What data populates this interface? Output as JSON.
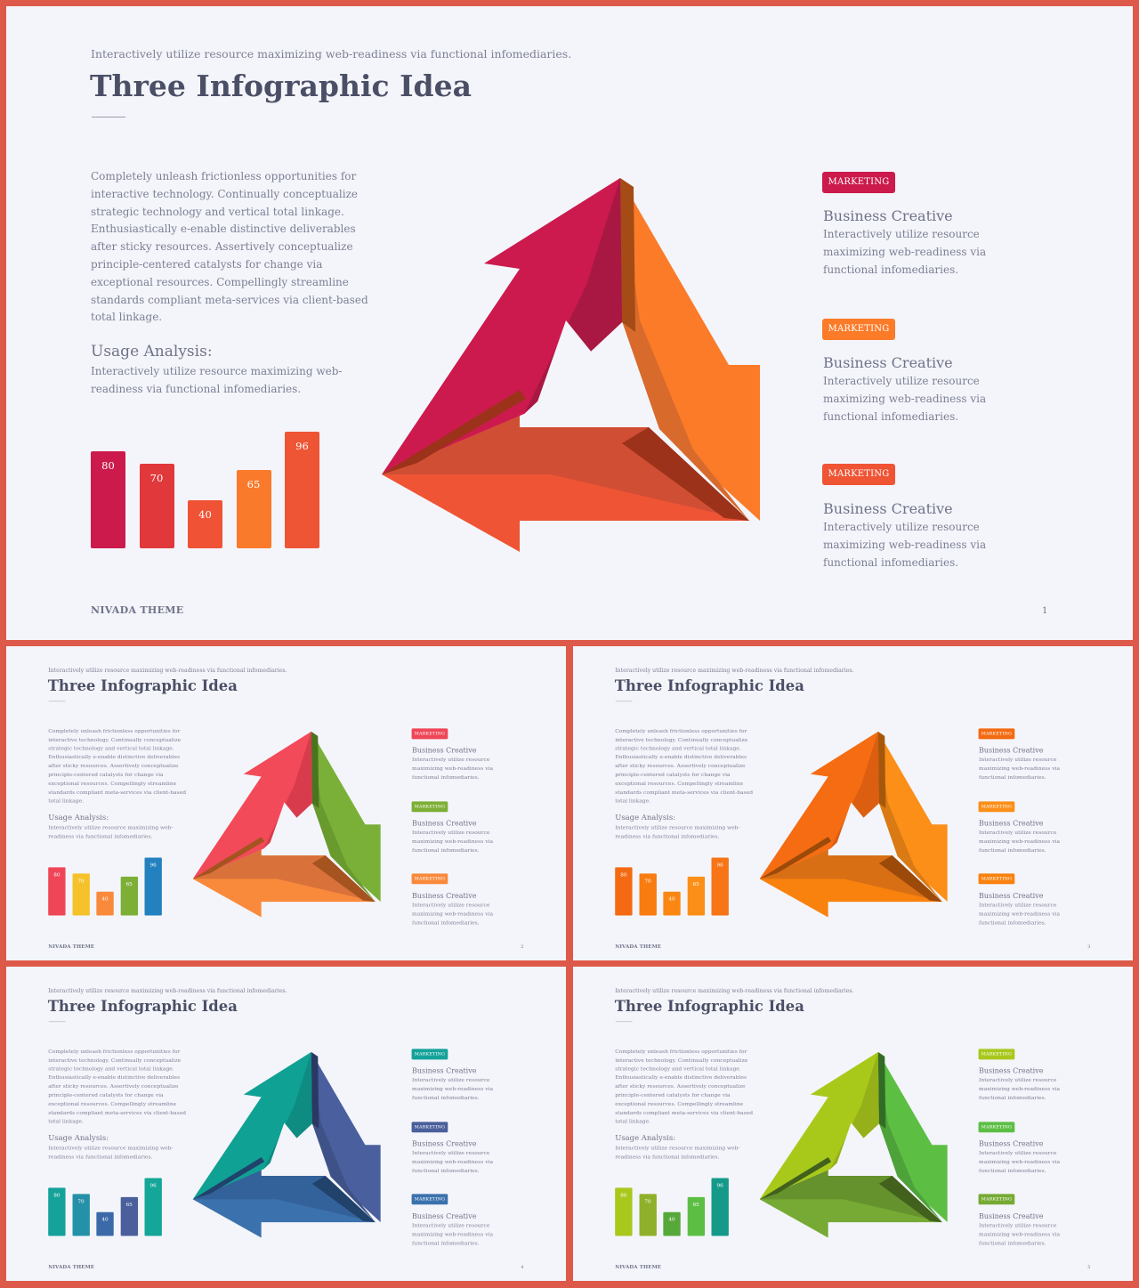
{
  "slides": [
    {
      "subtitle": "Interactively utilize resource maximizing web-readiness via functional infomediaries.",
      "title": "Three Infographic Idea",
      "body": "Completely unleash frictionless opportunities for interactive technology. Continually conceptualize strategic technology and vertical total linkage. Enthusiastically e-enable distinctive deliverables after sticky resources. Assertively conceptualize principle-centered catalysts for change via exceptional resources. Compellingly streamline standards compliant meta-services via client-based total linkage.",
      "usage_heading": "Usage Analysis:",
      "usage_text": "Interactively utilize resource maximizing web-readiness via functional infomediaries.",
      "bars": [
        {
          "value": 80,
          "label": "80",
          "color": "#cb1a4b"
        },
        {
          "value": 70,
          "label": "70",
          "color": "#e0383b"
        },
        {
          "value": 40,
          "label": "40",
          "color": "#ef5234"
        },
        {
          "value": 65,
          "label": "65",
          "color": "#f97a2b"
        },
        {
          "value": 96,
          "label": "96",
          "color": "#ee5535"
        }
      ],
      "triangle_colors": {
        "top_arm": "#cc1a4e",
        "top_arm_inner": "#a81843",
        "top_fold": "#7e1131",
        "right_arm": "#fb7b29",
        "right_arm_inner": "#d86a2c",
        "right_fold": "#a54b15",
        "bottom_arm": "#ef5434",
        "bottom_arm_inner": "#d04e34",
        "bottom_fold": "#9c3219"
      },
      "items": [
        {
          "badge": "MARKETING",
          "badge_color": "#cb1a4b",
          "title": "Business Creative",
          "desc": "Interactively utilize resource maximizing web-readiness via functional infomediaries."
        },
        {
          "badge": "MARKETING",
          "badge_color": "#fb7b29",
          "title": "Business Creative",
          "desc": "Interactively utilize resource maximizing web-readiness via functional infomediaries."
        },
        {
          "badge": "MARKETING",
          "badge_color": "#ef5434",
          "title": "Business Creative",
          "desc": "Interactively utilize resource maximizing web-readiness via functional infomediaries."
        }
      ],
      "footer": "NIVADA THEME",
      "page": "1"
    },
    {
      "subtitle": "Interactively utilize resource maximizing web-readiness via functional infomediaries.",
      "title": "Three Infographic Idea",
      "body": "Completely unleash frictionless opportunities for interactive technology. Continually conceptualize strategic technology and vertical total linkage. Enthusiastically e-enable distinctive deliverables after sticky resources. Assertively conceptualize principle-centered catalysts for change via exceptional resources. Compellingly streamline standards compliant meta-services via client-based total linkage.",
      "usage_heading": "Usage Analysis:",
      "usage_text": "Interactively utilize resource maximizing web-readiness via functional infomediaries.",
      "bars": [
        {
          "value": 80,
          "label": "80",
          "color": "#ef4657"
        },
        {
          "value": 70,
          "label": "70",
          "color": "#f6c22b"
        },
        {
          "value": 40,
          "label": "40",
          "color": "#f98a3c"
        },
        {
          "value": 65,
          "label": "65",
          "color": "#7daf36"
        },
        {
          "value": 96,
          "label": "96",
          "color": "#2481bf"
        }
      ],
      "triangle_colors": {
        "top_arm": "#f34a5a",
        "top_arm_inner": "#d83c4c",
        "top_fold": "#a52633",
        "right_arm": "#7ab038",
        "right_arm_inner": "#689a2e",
        "right_fold": "#4b7420",
        "bottom_arm": "#f98a3c",
        "bottom_arm_inner": "#d9723a",
        "bottom_fold": "#a5531f"
      },
      "items": [
        {
          "badge": "MARKETING",
          "badge_color": "#ef4657",
          "title": "Business Creative",
          "desc": "Interactively utilize resource maximizing web-readiness via functional infomediaries."
        },
        {
          "badge": "MARKETING",
          "badge_color": "#7daf36",
          "title": "Business Creative",
          "desc": "Interactively utilize resource maximizing web-readiness via functional infomediaries."
        },
        {
          "badge": "MARKETING",
          "badge_color": "#f98a3c",
          "title": "Business Creative",
          "desc": "Interactively utilize resource maximizing web-readiness via functional infomediaries."
        }
      ],
      "footer": "NIVADA THEME",
      "page": "2"
    },
    {
      "subtitle": "Interactively utilize resource maximizing web-readiness via functional infomediaries.",
      "title": "Three Infographic Idea",
      "body": "Completely unleash frictionless opportunities for interactive technology. Continually conceptualize strategic technology and vertical total linkage. Enthusiastically e-enable distinctive deliverables after sticky resources. Assertively conceptualize principle-centered catalysts for change via exceptional resources. Compellingly streamline standards compliant meta-services via client-based total linkage.",
      "usage_heading": "Usage Analysis:",
      "usage_text": "Interactively utilize resource maximizing web-readiness via functional infomediaries.",
      "bars": [
        {
          "value": 80,
          "label": "80",
          "color": "#f46a12"
        },
        {
          "value": 70,
          "label": "70",
          "color": "#f97c10"
        },
        {
          "value": 40,
          "label": "40",
          "color": "#fb8712"
        },
        {
          "value": 65,
          "label": "65",
          "color": "#fb8f18"
        },
        {
          "value": 96,
          "label": "96",
          "color": "#f77417"
        }
      ],
      "triangle_colors": {
        "top_arm": "#f56c12",
        "top_arm_inner": "#dc5e10",
        "top_fold": "#9e3e08",
        "right_arm": "#fb8f18",
        "right_arm_inner": "#da7a14",
        "right_fold": "#a5580c",
        "bottom_arm": "#f9820f",
        "bottom_arm_inner": "#d86f15",
        "bottom_fold": "#9c4a0a"
      },
      "items": [
        {
          "badge": "MARKETING",
          "badge_color": "#f46a12",
          "title": "Business Creative",
          "desc": "Interactively utilize resource maximizing web-readiness via functional infomediaries."
        },
        {
          "badge": "MARKETING",
          "badge_color": "#fb8f18",
          "title": "Business Creative",
          "desc": "Interactively utilize resource maximizing web-readiness via functional infomediaries."
        },
        {
          "badge": "MARKETING",
          "badge_color": "#f9820f",
          "title": "Business Creative",
          "desc": "Interactively utilize resource maximizing web-readiness via functional infomediaries."
        }
      ],
      "footer": "NIVADA THEME",
      "page": "3"
    },
    {
      "subtitle": "Interactively utilize resource maximizing web-readiness via functional infomediaries.",
      "title": "Three Infographic Idea",
      "body": "Completely unleash frictionless opportunities for interactive technology. Continually conceptualize strategic technology and vertical total linkage. Enthusiastically e-enable distinctive deliverables after sticky resources. Assertively conceptualize principle-centered catalysts for change via exceptional resources. Compellingly streamline standards compliant meta-services via client-based total linkage.",
      "usage_heading": "Usage Analysis:",
      "usage_text": "Interactively utilize resource maximizing web-readiness via functional infomediaries.",
      "bars": [
        {
          "value": 80,
          "label": "80",
          "color": "#14a29a"
        },
        {
          "value": 70,
          "label": "70",
          "color": "#2591a8"
        },
        {
          "value": 40,
          "label": "40",
          "color": "#3c6aa8"
        },
        {
          "value": 65,
          "label": "65",
          "color": "#4a5f9b"
        },
        {
          "value": 96,
          "label": "96",
          "color": "#14a698"
        }
      ],
      "triangle_colors": {
        "top_arm": "#0fa194",
        "top_arm_inner": "#0e8c82",
        "top_fold": "#096259",
        "right_arm": "#4a5f9e",
        "right_arm_inner": "#3f5288",
        "right_fold": "#2a3863",
        "bottom_arm": "#3b72ad",
        "bottom_arm_inner": "#33619a",
        "bottom_fold": "#20426b"
      },
      "items": [
        {
          "badge": "MARKETING",
          "badge_color": "#14a29a",
          "title": "Business Creative",
          "desc": "Interactively utilize resource maximizing web-readiness via functional infomediaries."
        },
        {
          "badge": "MARKETING",
          "badge_color": "#4a5f9b",
          "title": "Business Creative",
          "desc": "Interactively utilize resource maximizing web-readiness via functional infomediaries."
        },
        {
          "badge": "MARKETING",
          "badge_color": "#3b72ad",
          "title": "Business Creative",
          "desc": "Interactively utilize resource maximizing web-readiness via functional infomediaries."
        }
      ],
      "footer": "NIVADA THEME",
      "page": "4"
    },
    {
      "subtitle": "Interactively utilize resource maximizing web-readiness via functional infomediaries.",
      "title": "Three Infographic Idea",
      "body": "Completely unleash frictionless opportunities for interactive technology. Continually conceptualize strategic technology and vertical total linkage. Enthusiastically e-enable distinctive deliverables after sticky resources. Assertively conceptualize principle-centered catalysts for change via exceptional resources. Compellingly streamline standards compliant meta-services via client-based total linkage.",
      "usage_heading": "Usage Analysis:",
      "usage_text": "Interactively utilize resource maximizing web-readiness via functional infomediaries.",
      "bars": [
        {
          "value": 80,
          "label": "80",
          "color": "#a8c81c"
        },
        {
          "value": 70,
          "label": "70",
          "color": "#8fb02a"
        },
        {
          "value": 40,
          "label": "40",
          "color": "#56a83a"
        },
        {
          "value": 65,
          "label": "65",
          "color": "#5cbf44"
        },
        {
          "value": 96,
          "label": "96",
          "color": "#159a8a"
        }
      ],
      "triangle_colors": {
        "top_arm": "#a9c91a",
        "top_arm_inner": "#95b018",
        "top_fold": "#617510",
        "right_arm": "#5cbf44",
        "right_arm_inner": "#4ea23a",
        "right_fold": "#326b25",
        "bottom_arm": "#76aa34",
        "bottom_arm_inner": "#65922d",
        "bottom_fold": "#41611c"
      },
      "items": [
        {
          "badge": "MARKETING",
          "badge_color": "#a8c81c",
          "title": "Business Creative",
          "desc": "Interactively utilize resource maximizing web-readiness via functional infomediaries."
        },
        {
          "badge": "MARKETING",
          "badge_color": "#5cbf44",
          "title": "Business Creative",
          "desc": "Interactively utilize resource maximizing web-readiness via functional infomediaries."
        },
        {
          "badge": "MARKETING",
          "badge_color": "#76aa34",
          "title": "Business Creative",
          "desc": "Interactively utilize resource maximizing web-readiness via functional infomediaries."
        }
      ],
      "footer": "NIVADA THEME",
      "page": "5"
    }
  ]
}
